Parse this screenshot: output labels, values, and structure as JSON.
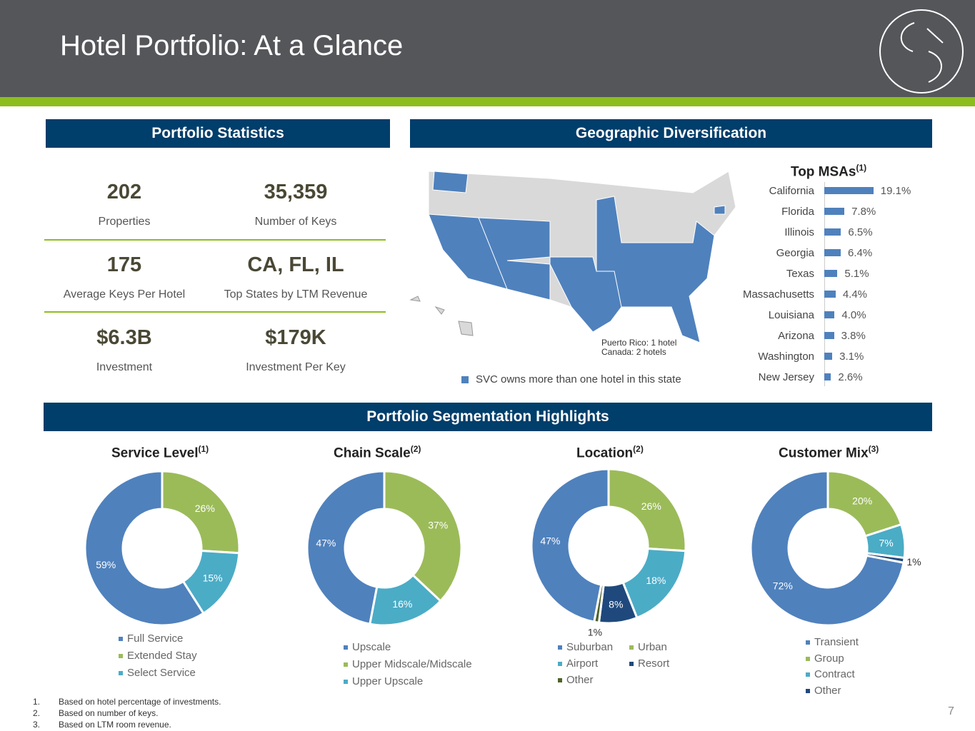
{
  "header": {
    "title": "Hotel Portfolio: At a Glance"
  },
  "sections": {
    "stats": "Portfolio Statistics",
    "geo": "Geographic Diversification",
    "seg": "Portfolio Segmentation Highlights"
  },
  "stats": [
    {
      "value": "202",
      "label": "Properties"
    },
    {
      "value": "35,359",
      "label": "Number of Keys"
    },
    {
      "value": "175",
      "label": "Average Keys Per Hotel"
    },
    {
      "value": "CA, FL, IL",
      "label": "Top States by LTM Revenue"
    },
    {
      "value": "$6.3B",
      "label": "Investment"
    },
    {
      "value": "$179K",
      "label": "Investment Per Key"
    }
  ],
  "map": {
    "note1": "Puerto Rico: 1 hotel",
    "note2": "Canada: 2 hotels",
    "legend": "SVC owns more than one hotel in this state"
  },
  "colors": {
    "blue": "#4f81bd",
    "green": "#9bbb59",
    "teal": "#4bacc6",
    "navy": "#1f497d",
    "olive": "#4f6228"
  },
  "chart_data": [
    {
      "type": "bar",
      "title": "Top MSAs",
      "title_sup": "(1)",
      "categories": [
        "California",
        "Florida",
        "Illinois",
        "Georgia",
        "Texas",
        "Massachusetts",
        "Louisiana",
        "Arizona",
        "Washington",
        "New Jersey"
      ],
      "values": [
        19.1,
        7.8,
        6.5,
        6.4,
        5.1,
        4.4,
        4.0,
        3.8,
        3.1,
        2.6
      ],
      "labels": [
        "19.1%",
        "7.8%",
        "6.5%",
        "6.4%",
        "5.1%",
        "4.4%",
        "4.0%",
        "3.8%",
        "3.1%",
        "2.6%"
      ]
    },
    {
      "type": "pie",
      "title": "Service Level",
      "title_sup": "(1)",
      "slices": [
        {
          "name": "Extended Stay",
          "value": 26,
          "label": "26%",
          "color": "#9bbb59"
        },
        {
          "name": "Select Service",
          "value": 15,
          "label": "15%",
          "color": "#4bacc6"
        },
        {
          "name": "Full Service",
          "value": 59,
          "label": "59%",
          "color": "#4f81bd"
        }
      ],
      "legend": [
        "Full Service",
        "Extended Stay",
        "Select Service"
      ]
    },
    {
      "type": "pie",
      "title": "Chain Scale",
      "title_sup": "(2)",
      "slices": [
        {
          "name": "Upper Midscale/Midscale",
          "value": 37,
          "label": "37%",
          "color": "#9bbb59"
        },
        {
          "name": "Upper Upscale",
          "value": 16,
          "label": "16%",
          "color": "#4bacc6"
        },
        {
          "name": "Upscale",
          "value": 47,
          "label": "47%",
          "color": "#4f81bd"
        }
      ],
      "legend": [
        "Upscale",
        "Upper Midscale/Midscale",
        "Upper Upscale"
      ]
    },
    {
      "type": "pie",
      "title": "Location",
      "title_sup": "(2)",
      "slices": [
        {
          "name": "Urban",
          "value": 26,
          "label": "26%",
          "color": "#9bbb59"
        },
        {
          "name": "Airport",
          "value": 18,
          "label": "18%",
          "color": "#4bacc6"
        },
        {
          "name": "Resort",
          "value": 8,
          "label": "8%",
          "color": "#1f497d"
        },
        {
          "name": "Other",
          "value": 1,
          "label": "1%",
          "color": "#4f6228"
        },
        {
          "name": "Suburban",
          "value": 47,
          "label": "47%",
          "color": "#4f81bd"
        }
      ],
      "legend": [
        "Suburban",
        "Urban",
        "Airport",
        "Resort",
        "Other"
      ]
    },
    {
      "type": "pie",
      "title": "Customer Mix",
      "title_sup": "(3)",
      "slices": [
        {
          "name": "Group",
          "value": 20,
          "label": "20%",
          "color": "#9bbb59"
        },
        {
          "name": "Contract",
          "value": 7,
          "label": "7%",
          "color": "#4bacc6"
        },
        {
          "name": "Other",
          "value": 1,
          "label": "1%",
          "color": "#1f497d"
        },
        {
          "name": "Transient",
          "value": 72,
          "label": "72%",
          "color": "#4f81bd"
        }
      ],
      "legend": [
        "Transient",
        "Group",
        "Contract",
        "Other"
      ]
    }
  ],
  "footnotes": [
    "Based on hotel percentage of investments.",
    "Based on number of keys.",
    "Based on LTM room revenue."
  ],
  "page_number": "7"
}
